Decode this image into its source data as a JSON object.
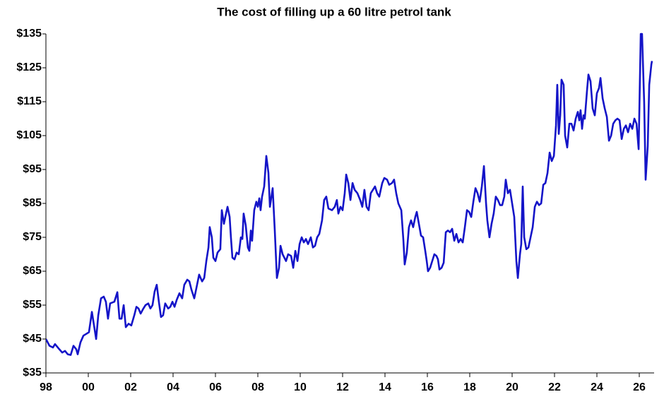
{
  "chart_data": {
    "type": "line",
    "title": "The cost of filling up a 60 litre petrol tank",
    "color": "#1414c8",
    "xlim": [
      1998,
      2026.7
    ],
    "xticks": [
      {
        "value": 1998,
        "label": "98"
      },
      {
        "value": 2000,
        "label": "00"
      },
      {
        "value": 2002,
        "label": "02"
      },
      {
        "value": 2004,
        "label": "04"
      },
      {
        "value": 2006,
        "label": "06"
      },
      {
        "value": 2008,
        "label": "08"
      },
      {
        "value": 2010,
        "label": "10"
      },
      {
        "value": 2012,
        "label": "12"
      },
      {
        "value": 2014,
        "label": "14"
      },
      {
        "value": 2016,
        "label": "16"
      },
      {
        "value": 2018,
        "label": "18"
      },
      {
        "value": 2020,
        "label": "20"
      },
      {
        "value": 2022,
        "label": "22"
      },
      {
        "value": 2024,
        "label": "24"
      },
      {
        "value": 2026,
        "label": "26"
      }
    ],
    "ylim": [
      35,
      135
    ],
    "yticks": [
      {
        "value": 35,
        "label": "$35"
      },
      {
        "value": 45,
        "label": "$45"
      },
      {
        "value": 55,
        "label": "$55"
      },
      {
        "value": 65,
        "label": "$65"
      },
      {
        "value": 75,
        "label": "$75"
      },
      {
        "value": 85,
        "label": "$85"
      },
      {
        "value": 95,
        "label": "$95"
      },
      {
        "value": 105,
        "label": "$105"
      },
      {
        "value": 115,
        "label": "$115"
      },
      {
        "value": 125,
        "label": "$125"
      },
      {
        "value": 135,
        "label": "$135"
      }
    ],
    "x": [
      1998.0,
      1998.17,
      1998.33,
      1998.43,
      1998.63,
      1998.77,
      1998.9,
      1999.03,
      1999.17,
      1999.3,
      1999.43,
      1999.5,
      1999.63,
      1999.77,
      1999.9,
      2000.03,
      2000.17,
      2000.27,
      2000.37,
      2000.47,
      2000.6,
      2000.73,
      2000.83,
      2000.93,
      2001.03,
      2001.23,
      2001.37,
      2001.47,
      2001.57,
      2001.67,
      2001.77,
      2001.9,
      2002.03,
      2002.17,
      2002.27,
      2002.37,
      2002.47,
      2002.6,
      2002.7,
      2002.83,
      2002.93,
      2003.03,
      2003.13,
      2003.23,
      2003.33,
      2003.43,
      2003.53,
      2003.63,
      2003.77,
      2003.87,
      2003.97,
      2004.07,
      2004.17,
      2004.3,
      2004.43,
      2004.53,
      2004.67,
      2004.77,
      2004.87,
      2005.0,
      2005.1,
      2005.23,
      2005.37,
      2005.47,
      2005.57,
      2005.67,
      2005.73,
      2005.83,
      2005.9,
      2006.0,
      2006.1,
      2006.23,
      2006.3,
      2006.4,
      2006.5,
      2006.57,
      2006.67,
      2006.73,
      2006.8,
      2006.9,
      2007.0,
      2007.1,
      2007.2,
      2007.27,
      2007.33,
      2007.43,
      2007.53,
      2007.6,
      2007.67,
      2007.73,
      2007.83,
      2007.93,
      2008.0,
      2008.07,
      2008.13,
      2008.2,
      2008.3,
      2008.4,
      2008.5,
      2008.57,
      2008.7,
      2008.8,
      2008.9,
      2009.0,
      2009.07,
      2009.17,
      2009.33,
      2009.43,
      2009.57,
      2009.67,
      2009.77,
      2009.87,
      2009.97,
      2010.07,
      2010.17,
      2010.27,
      2010.37,
      2010.5,
      2010.6,
      2010.7,
      2010.8,
      2010.9,
      2011.03,
      2011.13,
      2011.23,
      2011.33,
      2011.5,
      2011.63,
      2011.73,
      2011.8,
      2011.9,
      2012.0,
      2012.1,
      2012.17,
      2012.27,
      2012.37,
      2012.47,
      2012.57,
      2012.7,
      2012.83,
      2012.93,
      2013.03,
      2013.13,
      2013.23,
      2013.33,
      2013.43,
      2013.53,
      2013.63,
      2013.73,
      2013.87,
      2013.97,
      2014.1,
      2014.2,
      2014.33,
      2014.43,
      2014.53,
      2014.63,
      2014.77,
      2014.87,
      2014.93,
      2015.03,
      2015.13,
      2015.23,
      2015.33,
      2015.43,
      2015.5,
      2015.6,
      2015.7,
      2015.8,
      2015.9,
      2015.97,
      2016.03,
      2016.13,
      2016.23,
      2016.33,
      2016.43,
      2016.5,
      2016.57,
      2016.67,
      2016.77,
      2016.87,
      2016.97,
      2017.07,
      2017.17,
      2017.27,
      2017.37,
      2017.47,
      2017.57,
      2017.67,
      2017.77,
      2017.87,
      2017.97,
      2018.07,
      2018.17,
      2018.27,
      2018.37,
      2018.47,
      2018.57,
      2018.67,
      2018.77,
      2018.83,
      2018.93,
      2019.03,
      2019.13,
      2019.23,
      2019.33,
      2019.43,
      2019.53,
      2019.63,
      2019.7,
      2019.8,
      2019.9,
      2020.0,
      2020.1,
      2020.2,
      2020.27,
      2020.37,
      2020.43,
      2020.5,
      2020.57,
      2020.67,
      2020.77,
      2020.87,
      2020.97,
      2021.07,
      2021.17,
      2021.27,
      2021.37,
      2021.47,
      2021.57,
      2021.67,
      2021.77,
      2021.87,
      2021.97,
      2022.07,
      2022.13,
      2022.2,
      2022.27,
      2022.33,
      2022.43,
      2022.5,
      2022.6,
      2022.7,
      2022.8,
      2022.9,
      2023.0,
      2023.1,
      2023.17,
      2023.23,
      2023.3,
      2023.37,
      2023.43,
      2023.53,
      2023.6,
      2023.7,
      2023.8,
      2023.9,
      2024.0,
      2024.1,
      2024.17,
      2024.27,
      2024.37,
      2024.47,
      2024.57,
      2024.67,
      2024.77,
      2024.87,
      2024.97,
      2025.07,
      2025.17,
      2025.27,
      2025.37,
      2025.47,
      2025.57,
      2025.67,
      2025.77,
      2025.87,
      2025.97,
      2026.07,
      2026.13,
      2026.23,
      2026.3,
      2026.4,
      2026.47,
      2026.57,
      2026.6
    ],
    "values": [
      45,
      43,
      42.5,
      43.5,
      42,
      41,
      41.5,
      40.5,
      40.3,
      43,
      42,
      40.5,
      44,
      46,
      46.5,
      47,
      53,
      49,
      45,
      52,
      57,
      57.5,
      56,
      51,
      55.5,
      56,
      58.8,
      51,
      51,
      55,
      48.5,
      49.5,
      49,
      52,
      54.5,
      54,
      52.5,
      54,
      55,
      55.5,
      54,
      55,
      59,
      61,
      56,
      51.5,
      52,
      55.5,
      54,
      54.5,
      56,
      54.5,
      56.5,
      58.5,
      57,
      61,
      62.5,
      62,
      59.5,
      57,
      60,
      64,
      62,
      63,
      68,
      72,
      78,
      75,
      69,
      68,
      70.5,
      71.5,
      83,
      79,
      82,
      84,
      81,
      75,
      69,
      68.5,
      70.5,
      70,
      75,
      74.5,
      82,
      78.5,
      72,
      71,
      77,
      74,
      83,
      85.5,
      84,
      86.5,
      83,
      87,
      90,
      99,
      94,
      84,
      89.5,
      77,
      63,
      66,
      72.5,
      70,
      68,
      70,
      69.5,
      66,
      71,
      68,
      73,
      75,
      73.5,
      74.5,
      73,
      75,
      72,
      72.5,
      75,
      76,
      80,
      86,
      87,
      83.5,
      83,
      84,
      86,
      82,
      84,
      83,
      88,
      93.5,
      91,
      86,
      91,
      89,
      88,
      86,
      84,
      89,
      84,
      83,
      88,
      89,
      90,
      88,
      87,
      91,
      92.5,
      92,
      90.5,
      91,
      92,
      88,
      85,
      83,
      74,
      67,
      70.5,
      78,
      80,
      78,
      81,
      82.5,
      79,
      75.5,
      75,
      71,
      68,
      65,
      66,
      68,
      70,
      69.5,
      68.5,
      65.5,
      66,
      67.5,
      76.5,
      77,
      76.5,
      77.5,
      74,
      76,
      73.5,
      74.5,
      73.5,
      78,
      83,
      82.5,
      81,
      85.5,
      89.5,
      88,
      85.5,
      90,
      96,
      85,
      80,
      75,
      79,
      82,
      87,
      86,
      84.5,
      84.5,
      87,
      92,
      88,
      89,
      85,
      81,
      68,
      63,
      70,
      73,
      90,
      75,
      71.5,
      72,
      75,
      78,
      84,
      85.5,
      84.5,
      85,
      90.5,
      91,
      94,
      100,
      97.5,
      99,
      108,
      120,
      105.5,
      111,
      121.5,
      120,
      105,
      101.5,
      108.5,
      108.5,
      106.5,
      110,
      112,
      109.5,
      112.5,
      107,
      111,
      110,
      118,
      123,
      121,
      113,
      111,
      117.5,
      119,
      122,
      116,
      113,
      110.5,
      103.5,
      105,
      108.5,
      109.5,
      110,
      109.5,
      104,
      107,
      108,
      106,
      108.5,
      107,
      110,
      108.5,
      101,
      135,
      135,
      115,
      92,
      102,
      120,
      126,
      127
    ]
  }
}
